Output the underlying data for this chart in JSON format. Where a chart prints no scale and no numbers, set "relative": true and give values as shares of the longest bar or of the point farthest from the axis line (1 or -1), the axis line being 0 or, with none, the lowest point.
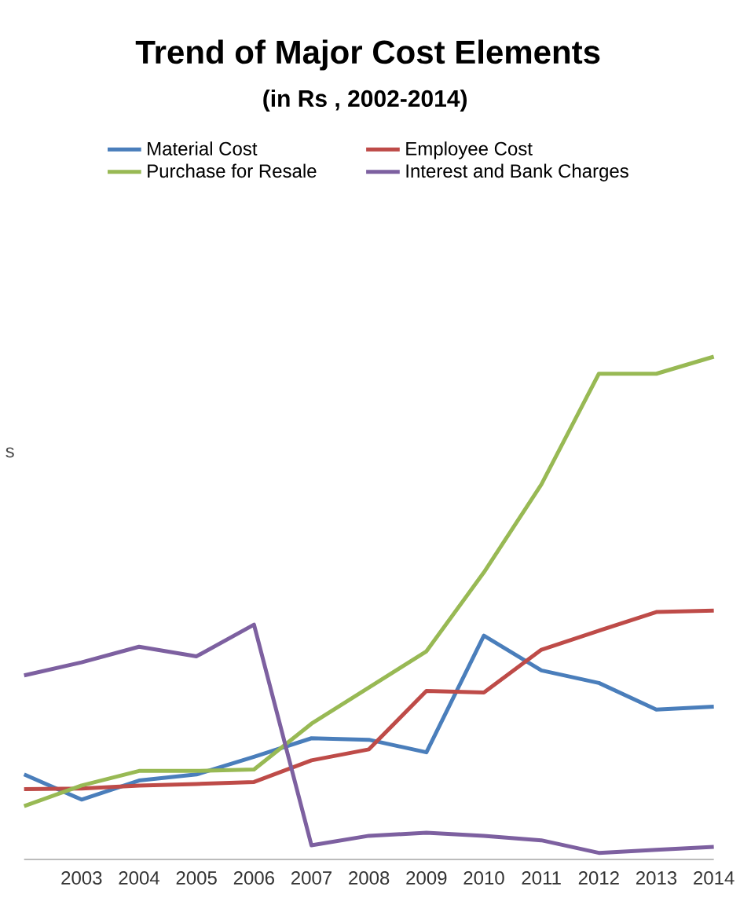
{
  "chart_data": {
    "type": "line",
    "title": "Trend  of Major Cost Elements",
    "subtitle": "(in Rs , 2002-2014)",
    "ylabel": "s",
    "relative": true,
    "legend": "top",
    "categories": [
      null,
      "2003",
      "2004",
      "2005",
      "2006",
      "2007",
      "2008",
      "2009",
      "2010",
      "2011",
      "2012",
      "2013",
      "2014"
    ],
    "series": [
      {
        "name": "Material Cost",
        "color": "#4a7ebb",
        "values": [
          0.169,
          0.119,
          0.157,
          0.169,
          0.204,
          0.241,
          0.238,
          0.213,
          0.445,
          0.376,
          0.351,
          0.298,
          0.304
        ]
      },
      {
        "name": "Employee Cost",
        "color": "#be4b48",
        "values": [
          0.14,
          0.141,
          0.147,
          0.15,
          0.154,
          0.197,
          0.219,
          0.335,
          0.332,
          0.417,
          0.455,
          0.492,
          0.495
        ]
      },
      {
        "name": "Purchase for Resale",
        "color": "#98b954",
        "values": [
          0.106,
          0.147,
          0.176,
          0.176,
          0.179,
          0.27,
          0.342,
          0.414,
          0.571,
          0.746,
          0.966,
          0.966,
          1
        ]
      },
      {
        "name": "Interest and Bank Charges",
        "color": "#7d60a0",
        "values": [
          0.366,
          0.392,
          0.423,
          0.404,
          0.467,
          0.028,
          0.047,
          0.053,
          0.047,
          0.038,
          0.013,
          0.019,
          0.025
        ]
      }
    ]
  }
}
